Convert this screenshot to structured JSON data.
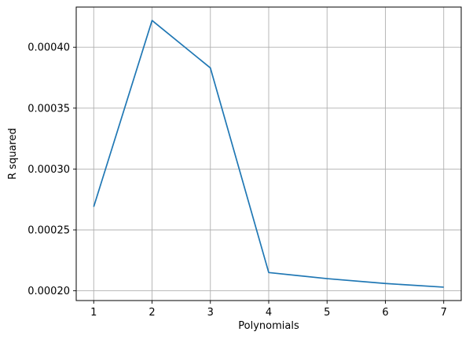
{
  "chart_data": {
    "type": "line",
    "title": "",
    "xlabel": "Polynomials",
    "ylabel": "R squared",
    "x": [
      1,
      2,
      3,
      4,
      5,
      6,
      7
    ],
    "series": [
      {
        "values": [
          0.000269,
          0.000422,
          0.000383,
          0.000215,
          0.00021,
          0.000206,
          0.000203
        ],
        "color": "#1f77b4"
      }
    ],
    "xlim": [
      0.7,
      7.3
    ],
    "ylim": [
      0.000192,
      0.000433
    ],
    "xticks": [
      1,
      2,
      3,
      4,
      5,
      6,
      7
    ],
    "xtick_labels": [
      "1",
      "2",
      "3",
      "4",
      "5",
      "6",
      "7"
    ],
    "yticks": [
      0.0002,
      0.00025,
      0.0003,
      0.00035,
      0.0004
    ],
    "ytick_labels": [
      "0.00020",
      "0.00025",
      "0.00030",
      "0.00035",
      "0.00040"
    ],
    "grid": true,
    "legend": false
  }
}
